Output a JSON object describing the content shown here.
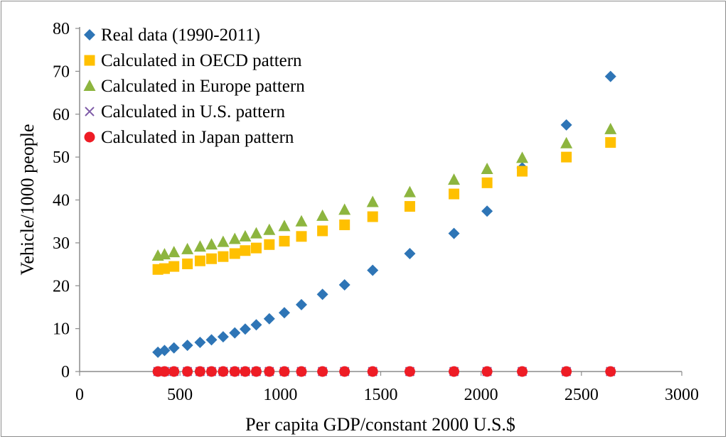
{
  "chart_data": {
    "type": "scatter",
    "title": "",
    "xlabel": "Per capita GDP/constant 2000 U.S.$",
    "ylabel": "Vehicle/1000 people",
    "xlim": [
      0,
      3000
    ],
    "ylim": [
      0,
      80
    ],
    "x_ticks": [
      0,
      500,
      1000,
      1500,
      2000,
      2500,
      3000
    ],
    "y_ticks": [
      0,
      10,
      20,
      30,
      40,
      50,
      60,
      70,
      80
    ],
    "grid": false,
    "legend_position": "top-left",
    "x": [
      390,
      423,
      470,
      537,
      600,
      657,
      715,
      773,
      825,
      880,
      945,
      1020,
      1105,
      1210,
      1320,
      1460,
      1645,
      1865,
      2030,
      2205,
      2425,
      2645
    ],
    "series": [
      {
        "name": "Real data (1990-2011)",
        "marker": "diamond",
        "color": "#2e75b6",
        "values": [
          4.5,
          4.9,
          5.5,
          6.1,
          6.8,
          7.4,
          8.1,
          9.0,
          9.9,
          10.9,
          12.3,
          13.7,
          15.6,
          18.0,
          20.2,
          23.6,
          27.5,
          32.2,
          37.4,
          47.5,
          57.5,
          68.8
        ]
      },
      {
        "name": "Calculated in OECD pattern",
        "marker": "square",
        "color": "#ffc000",
        "values": [
          23.8,
          24.0,
          24.5,
          25.1,
          25.8,
          26.3,
          26.8,
          27.5,
          28.2,
          28.8,
          29.6,
          30.4,
          31.5,
          32.8,
          34.2,
          36.1,
          38.5,
          41.4,
          44.0,
          46.7,
          50.0,
          53.4
        ]
      },
      {
        "name": "Calculated in Europe pattern",
        "marker": "triangle",
        "color": "#8db53f",
        "values": [
          27.0,
          27.3,
          27.8,
          28.5,
          29.1,
          29.6,
          30.2,
          30.9,
          31.5,
          32.2,
          33.0,
          33.9,
          35.0,
          36.3,
          37.7,
          39.5,
          41.8,
          44.7,
          47.2,
          49.8,
          53.2,
          56.5
        ]
      },
      {
        "name": "Calculated in U.S. pattern",
        "marker": "x",
        "color": "#7f5ca8",
        "values": [
          0,
          0,
          0,
          0,
          0,
          0,
          0,
          0,
          0,
          0,
          0,
          0,
          0,
          0,
          0,
          0,
          0,
          0,
          0,
          0,
          0,
          0
        ]
      },
      {
        "name": "Calculated in Japan pattern",
        "marker": "circle",
        "color": "#ee1c25",
        "values": [
          0,
          0,
          0,
          0,
          0,
          0,
          0,
          0,
          0,
          0,
          0,
          0,
          0,
          0,
          0,
          0,
          0,
          0,
          0,
          0,
          0,
          0
        ]
      }
    ]
  }
}
